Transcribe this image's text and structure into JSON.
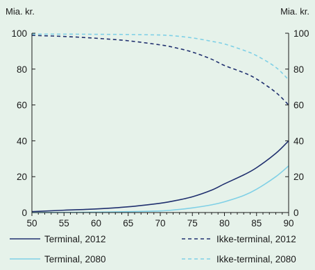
{
  "chart_data": {
    "type": "line",
    "title": "",
    "ylabel_left": "Mia. kr.",
    "ylabel_right": "Mia. kr.",
    "xlim": [
      50,
      90
    ],
    "ylim": [
      0,
      100
    ],
    "x_ticks": [
      50,
      55,
      60,
      65,
      70,
      75,
      80,
      85,
      90
    ],
    "y_ticks": [
      0,
      20,
      40,
      60,
      80,
      100
    ],
    "grid": false,
    "legend_position": "bottom",
    "series": [
      {
        "name": "Terminal, 2012",
        "color": "#1f2f6e",
        "dash": "solid",
        "x": [
          50,
          55,
          60,
          65,
          70,
          72,
          75,
          78,
          80,
          83,
          85,
          88,
          90
        ],
        "y": [
          0.5,
          1.3,
          2.0,
          3.2,
          5.2,
          6.4,
          8.8,
          12.5,
          16.0,
          21.0,
          25.0,
          33.0,
          40.0
        ]
      },
      {
        "name": "Ikke-terminal, 2012",
        "color": "#1f2f6e",
        "dash": "dashed",
        "x": [
          50,
          55,
          60,
          65,
          70,
          72,
          75,
          78,
          80,
          83,
          85,
          88,
          90
        ],
        "y": [
          98.8,
          98.2,
          97.2,
          95.8,
          93.5,
          92.2,
          89.5,
          85.5,
          82.0,
          78.0,
          74.5,
          67.0,
          60.0
        ]
      },
      {
        "name": "Terminal, 2080",
        "color": "#7fd0e6",
        "dash": "solid",
        "x": [
          50,
          55,
          60,
          65,
          70,
          72,
          75,
          78,
          80,
          83,
          85,
          88,
          90
        ],
        "y": [
          0.0,
          0.1,
          0.2,
          0.5,
          0.9,
          1.4,
          2.6,
          4.3,
          6.0,
          9.5,
          13.0,
          20.0,
          26.0
        ]
      },
      {
        "name": "Ikke-terminal, 2080",
        "color": "#7fd0e6",
        "dash": "dashed",
        "x": [
          50,
          55,
          60,
          65,
          70,
          72,
          75,
          78,
          80,
          83,
          85,
          88,
          90
        ],
        "y": [
          99.5,
          99.5,
          99.4,
          99.3,
          99.0,
          98.6,
          97.4,
          95.5,
          94.0,
          90.5,
          87.5,
          81.0,
          74.0
        ]
      }
    ]
  }
}
